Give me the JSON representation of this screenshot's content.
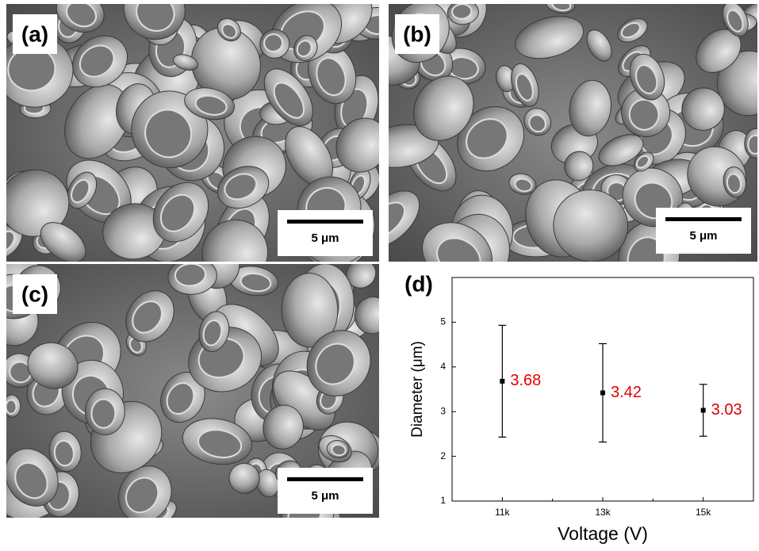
{
  "panels": [
    {
      "label": "(a)",
      "scale_bar": "5 μm"
    },
    {
      "label": "(b)",
      "scale_bar": "5 μm"
    },
    {
      "label": "(c)",
      "scale_bar": "5 μm"
    },
    {
      "label": "(d)"
    }
  ],
  "chart_data": {
    "type": "errorbar",
    "x_label": "Voltage (V)",
    "y_label": "Diameter (μm)",
    "categories": [
      "11k",
      "13k",
      "15k"
    ],
    "values": [
      3.68,
      3.42,
      3.03
    ],
    "errors": [
      1.25,
      1.1,
      0.58
    ],
    "color": "#000000",
    "label_color": "#e00000",
    "ylim": [
      1,
      6
    ],
    "yticks": [
      1,
      2,
      3,
      4,
      5
    ]
  }
}
